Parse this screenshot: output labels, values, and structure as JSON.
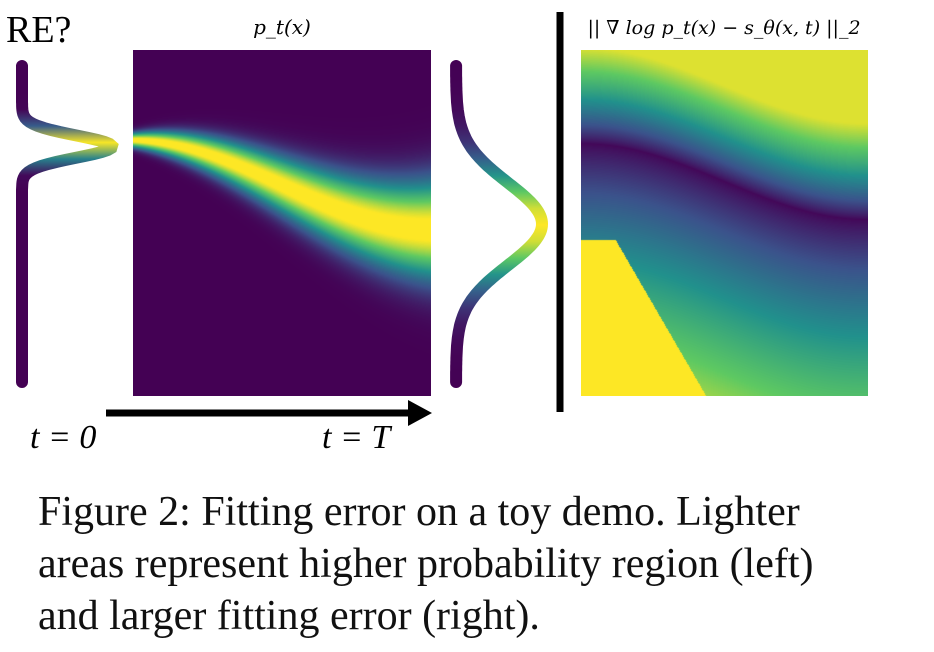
{
  "fragment_text": "RE?",
  "panels": {
    "density_title": "p_t(x)",
    "error_title": "|| ∇ log p_t(x) − s_θ(x, t) ||_2"
  },
  "time_axis": {
    "start_label": "t = 0",
    "end_label": "t = T"
  },
  "caption": {
    "line1": "Figure 2: Fitting error on a toy demo. Lighter",
    "line2": "areas represent higher probability region (left)",
    "line3": "and larger fitting error (right)."
  },
  "colormap": [
    "#440154",
    "#3b528b",
    "#21918c",
    "#5ec962",
    "#fde725"
  ]
}
